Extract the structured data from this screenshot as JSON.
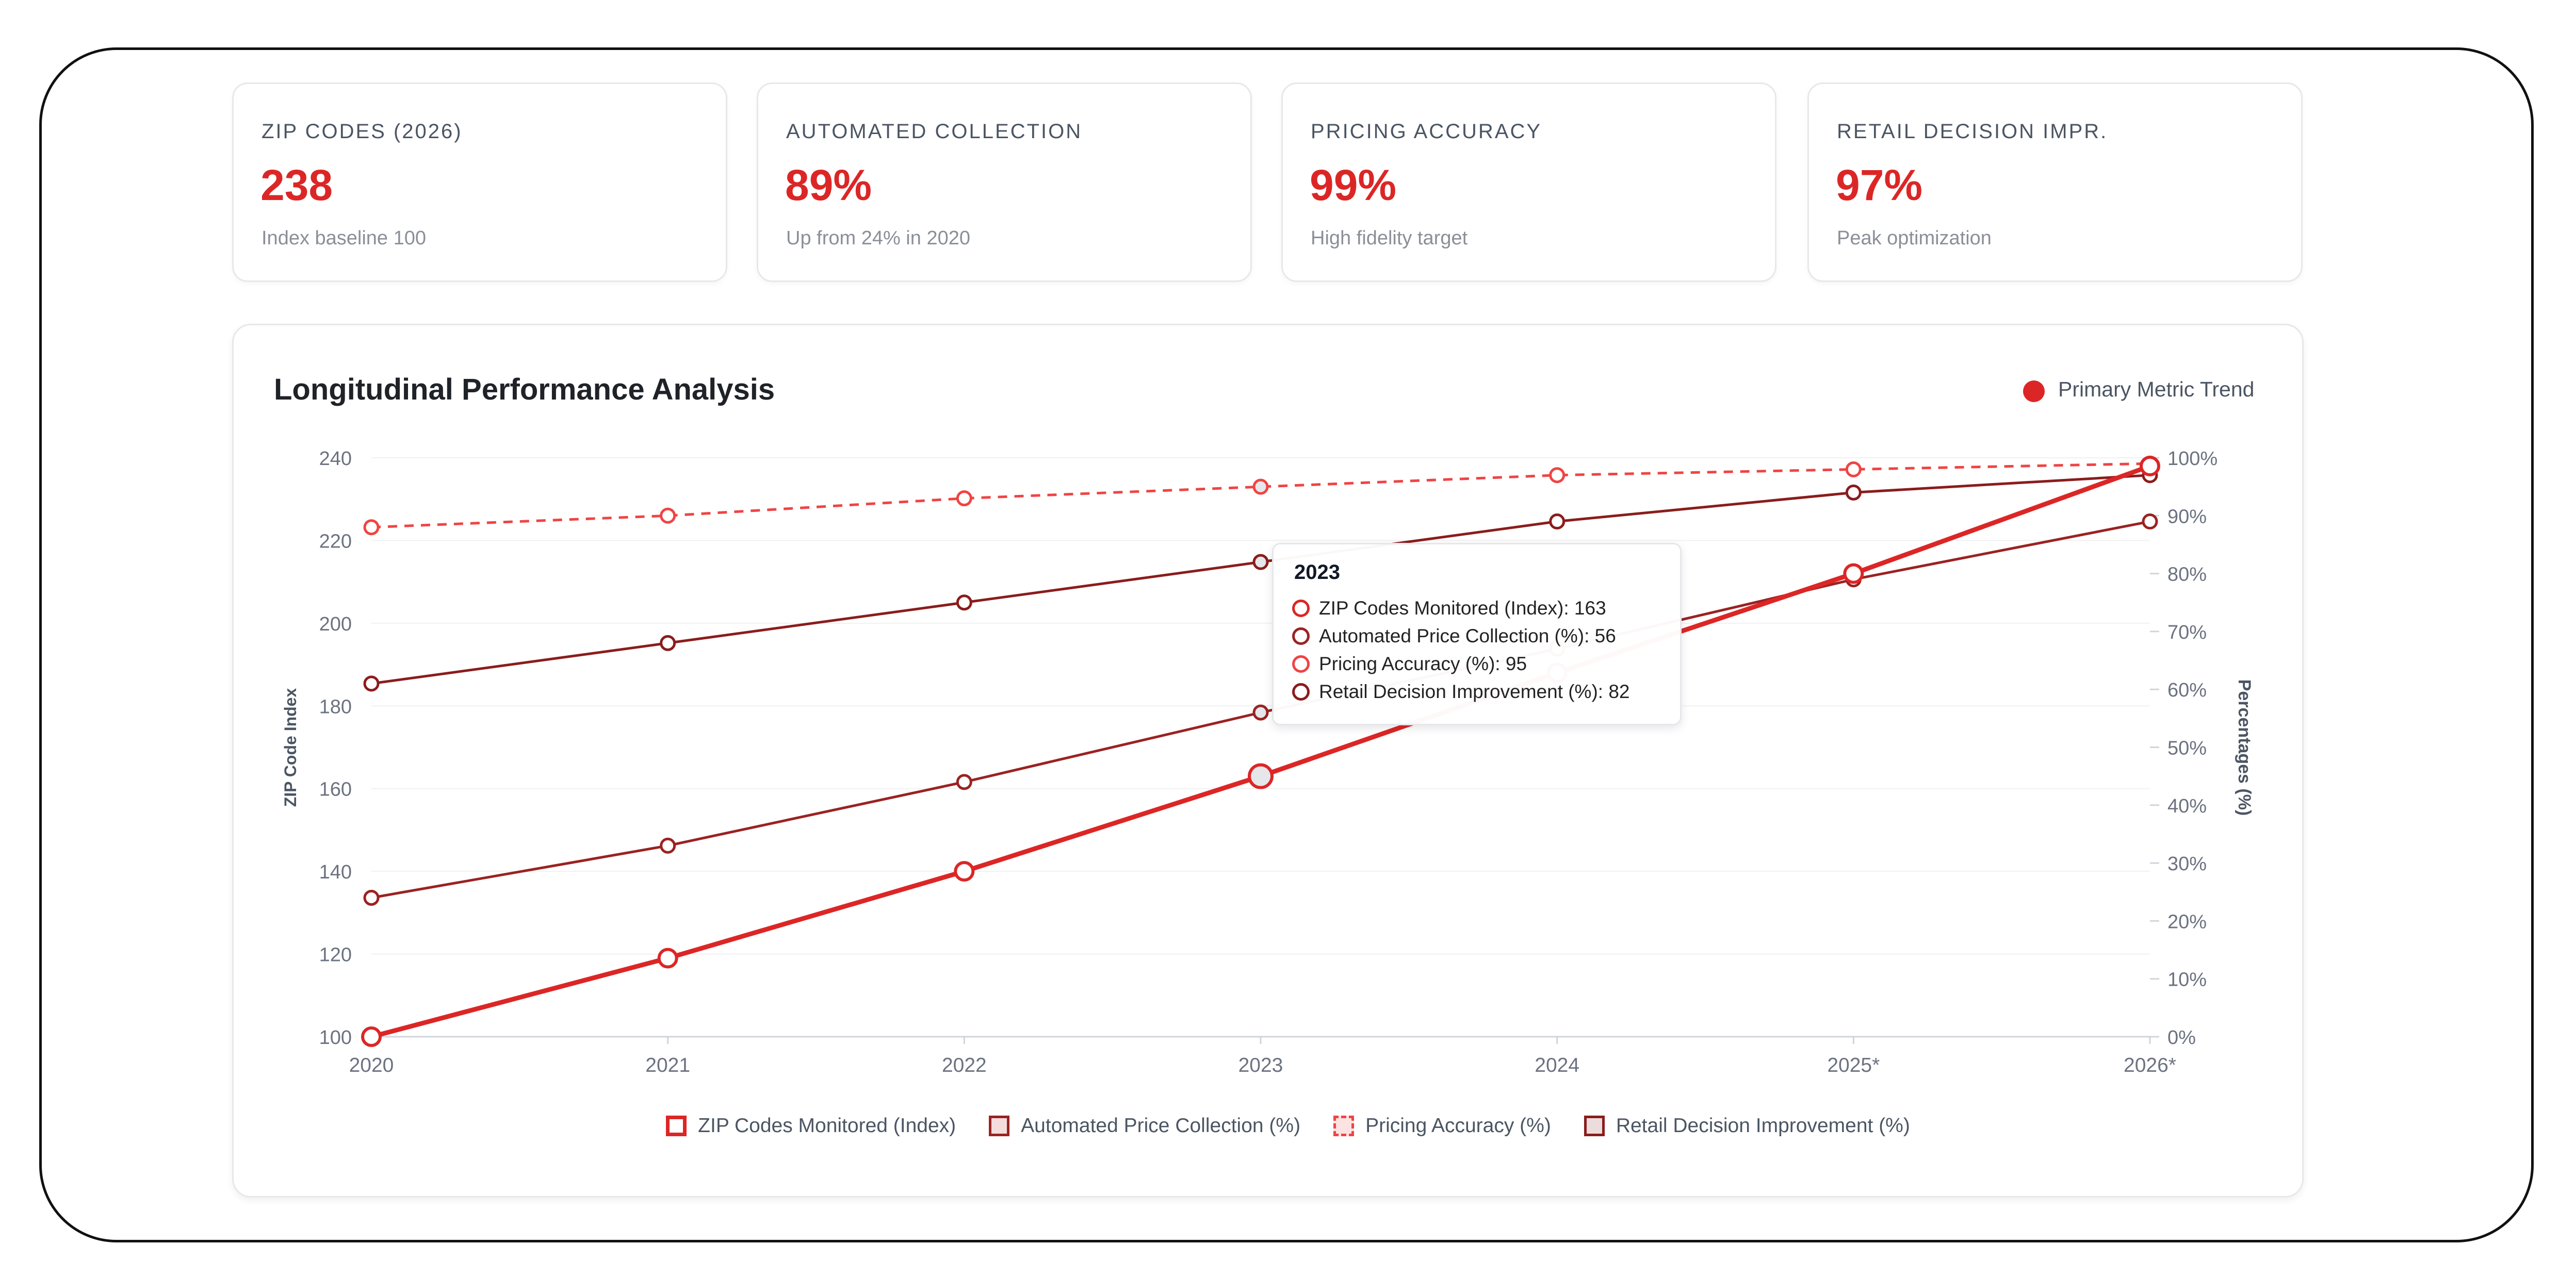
{
  "stats": [
    {
      "label": "ZIP CODES (2026)",
      "value": "238",
      "sub": "Index baseline 100"
    },
    {
      "label": "AUTOMATED COLLECTION",
      "value": "89%",
      "sub": "Up from 24% in 2020"
    },
    {
      "label": "PRICING ACCURACY",
      "value": "99%",
      "sub": "High fidelity target"
    },
    {
      "label": "RETAIL DECISION IMPR.",
      "value": "97%",
      "sub": "Peak optimization"
    }
  ],
  "chart_header": {
    "title": "Longitudinal Performance Analysis",
    "trend_label": "Primary Metric Trend"
  },
  "tooltip": {
    "title": "2023",
    "rows": [
      "ZIP Codes Monitored (Index): 163",
      "Automated Price Collection (%): 56",
      "Pricing Accuracy (%): 95",
      "Retail Decision Improvement (%): 82"
    ]
  },
  "colors": {
    "accent": "#dc2626",
    "dark_red": "#8b1c1c",
    "mid_red": "#9b2222",
    "light_red": "#ef4444"
  },
  "chart_data": {
    "type": "line",
    "categories": [
      "2020",
      "2021",
      "2022",
      "2023",
      "2024",
      "2025*",
      "2026*"
    ],
    "y_left": {
      "label": "ZIP Code Index",
      "range": [
        100,
        240
      ],
      "ticks": [
        "100",
        "120",
        "140",
        "160",
        "180",
        "200",
        "220",
        "240"
      ]
    },
    "y_right": {
      "label": "Percentages (%)",
      "range": [
        0,
        100
      ],
      "ticks": [
        "0%",
        "10%",
        "20%",
        "30%",
        "40%",
        "50%",
        "60%",
        "70%",
        "80%",
        "90%",
        "100%"
      ]
    },
    "series": [
      {
        "name": "ZIP Codes Monitored (Index)",
        "axis": "left",
        "color": "#dc2626",
        "style": "solid-thick",
        "values": [
          100,
          119,
          140,
          163,
          188,
          212,
          238
        ]
      },
      {
        "name": "Automated Price Collection (%)",
        "axis": "right",
        "color": "#9b2222",
        "style": "solid",
        "values": [
          24,
          33,
          44,
          56,
          67,
          79,
          89
        ]
      },
      {
        "name": "Pricing Accuracy (%)",
        "axis": "right",
        "color": "#ef4444",
        "style": "dashed",
        "values": [
          88,
          90,
          93,
          95,
          97,
          98,
          99
        ]
      },
      {
        "name": "Retail Decision Improvement (%)",
        "axis": "right",
        "color": "#8b1c1c",
        "style": "solid",
        "values": [
          61,
          68,
          75,
          82,
          89,
          94,
          97
        ]
      }
    ],
    "hovered_index": 3,
    "grid": true,
    "legend_position": "bottom-center"
  }
}
